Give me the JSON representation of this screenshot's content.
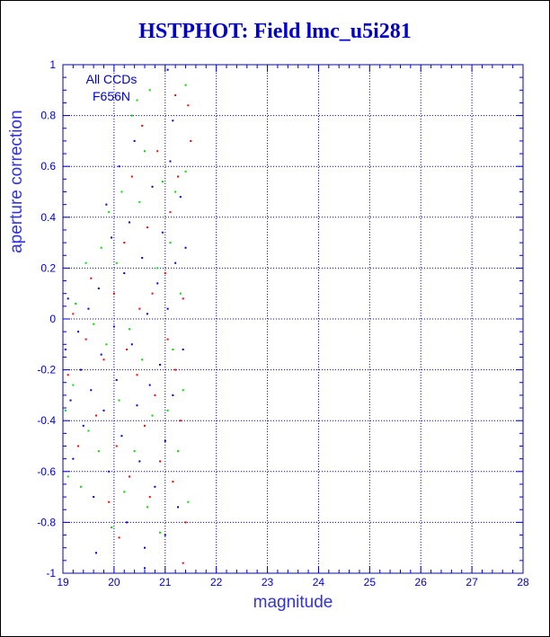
{
  "chart_data": {
    "type": "scatter",
    "title": "HSTPHOT: Field lmc_u5i281",
    "xlabel": "magnitude",
    "ylabel": "aperture correction",
    "xlim": [
      19,
      28
    ],
    "ylim": [
      -1,
      1
    ],
    "x_ticks": [
      "19",
      "20",
      "21",
      "22",
      "23",
      "24",
      "25",
      "26",
      "27",
      "28"
    ],
    "y_ticks": [
      "-1",
      "-0.8",
      "-0.6",
      "-0.4",
      "-0.2",
      "0",
      "0.2",
      "0.4",
      "0.6",
      "0.8",
      "1"
    ],
    "grid": true,
    "annotations": [
      "All CCDs",
      "F656N"
    ],
    "colors": {
      "axis": "#0000cc",
      "grid": "#0000cc",
      "title": "#0000cc"
    },
    "series": [
      {
        "color": "#0000cc",
        "points": [
          [
            19.05,
            -0.12
          ],
          [
            19.1,
            0.08
          ],
          [
            19.15,
            -0.32
          ],
          [
            19.2,
            -0.55
          ],
          [
            19.3,
            -0.05
          ],
          [
            19.35,
            -0.2
          ],
          [
            19.4,
            -0.42
          ],
          [
            19.5,
            0.04
          ],
          [
            19.55,
            -0.28
          ],
          [
            19.6,
            -0.7
          ],
          [
            19.65,
            -0.92
          ],
          [
            19.7,
            0.12
          ],
          [
            19.75,
            -0.14
          ],
          [
            19.8,
            -0.36
          ],
          [
            19.85,
            0.45
          ],
          [
            19.9,
            -0.6
          ],
          [
            19.95,
            0.32
          ],
          [
            20.0,
            -0.03
          ],
          [
            20.05,
            -0.24
          ],
          [
            20.1,
            0.6
          ],
          [
            20.15,
            -0.46
          ],
          [
            20.2,
            0.18
          ],
          [
            20.25,
            -0.8
          ],
          [
            20.3,
            0.38
          ],
          [
            20.35,
            -0.1
          ],
          [
            20.4,
            0.7
          ],
          [
            20.45,
            -0.34
          ],
          [
            20.5,
            -0.56
          ],
          [
            20.55,
            0.24
          ],
          [
            20.6,
            -0.9
          ],
          [
            20.65,
            0.02
          ],
          [
            20.7,
            -0.26
          ],
          [
            20.75,
            0.52
          ],
          [
            20.8,
            -0.66
          ],
          [
            20.85,
            0.14
          ],
          [
            20.9,
            -0.18
          ],
          [
            20.95,
            0.34
          ],
          [
            21.0,
            -0.48
          ],
          [
            21.05,
            0.04
          ],
          [
            21.1,
            0.62
          ],
          [
            21.15,
            -0.3
          ],
          [
            21.2,
            0.22
          ],
          [
            21.25,
            -0.74
          ],
          [
            21.3,
            0.48
          ],
          [
            21.35,
            -0.12
          ],
          [
            21.4,
            0.28
          ],
          [
            21.05,
            0.98
          ],
          [
            21.15,
            0.78
          ],
          [
            20.6,
            -0.98
          ],
          [
            21.0,
            -0.85
          ]
        ]
      },
      {
        "color": "#ff0000",
        "points": [
          [
            19.1,
            -0.22
          ],
          [
            19.2,
            0.02
          ],
          [
            19.3,
            -0.5
          ],
          [
            19.45,
            -0.08
          ],
          [
            19.55,
            0.16
          ],
          [
            19.65,
            -0.38
          ],
          [
            19.8,
            -0.16
          ],
          [
            19.9,
            -0.72
          ],
          [
            20.0,
            0.1
          ],
          [
            20.05,
            -0.5
          ],
          [
            20.1,
            -0.86
          ],
          [
            20.2,
            0.3
          ],
          [
            20.25,
            -0.12
          ],
          [
            20.3,
            -0.62
          ],
          [
            20.35,
            0.56
          ],
          [
            20.45,
            -0.22
          ],
          [
            20.5,
            0.04
          ],
          [
            20.55,
            0.76
          ],
          [
            20.6,
            -0.42
          ],
          [
            20.65,
            0.36
          ],
          [
            20.7,
            -0.7
          ],
          [
            20.75,
            0.1
          ],
          [
            20.8,
            -0.3
          ],
          [
            20.85,
            0.66
          ],
          [
            20.9,
            -0.56
          ],
          [
            21.0,
            0.18
          ],
          [
            21.05,
            -0.08
          ],
          [
            21.1,
            0.42
          ],
          [
            21.15,
            -0.64
          ],
          [
            21.2,
            -0.2
          ],
          [
            21.25,
            0.56
          ],
          [
            21.3,
            -0.4
          ],
          [
            21.35,
            0.08
          ],
          [
            21.4,
            -0.8
          ],
          [
            21.45,
            0.84
          ],
          [
            21.5,
            0.7
          ],
          [
            21.2,
            0.88
          ],
          [
            21.35,
            -0.96
          ]
        ]
      },
      {
        "color": "#00dd00",
        "points": [
          [
            19.05,
            -0.36
          ],
          [
            19.1,
            -0.62
          ],
          [
            19.2,
            -0.26
          ],
          [
            19.25,
            0.06
          ],
          [
            19.35,
            -0.66
          ],
          [
            19.45,
            0.22
          ],
          [
            19.5,
            -0.44
          ],
          [
            19.6,
            -0.02
          ],
          [
            19.7,
            -0.52
          ],
          [
            19.75,
            0.28
          ],
          [
            19.85,
            -0.1
          ],
          [
            19.9,
            0.42
          ],
          [
            19.95,
            -0.82
          ],
          [
            20.05,
            0.22
          ],
          [
            20.1,
            -0.32
          ],
          [
            20.15,
            0.5
          ],
          [
            20.2,
            -0.68
          ],
          [
            20.3,
            -0.04
          ],
          [
            20.35,
            0.8
          ],
          [
            20.4,
            -0.52
          ],
          [
            20.5,
            0.46
          ],
          [
            20.55,
            -0.16
          ],
          [
            20.6,
            0.66
          ],
          [
            20.65,
            -0.74
          ],
          [
            20.7,
            0.9
          ],
          [
            20.75,
            -0.38
          ],
          [
            20.85,
            0.2
          ],
          [
            20.9,
            -0.84
          ],
          [
            20.95,
            0.54
          ],
          [
            21.05,
            -0.36
          ],
          [
            21.1,
            0.3
          ],
          [
            21.15,
            -0.12
          ],
          [
            21.2,
            0.5
          ],
          [
            21.25,
            -0.52
          ],
          [
            21.3,
            0.1
          ],
          [
            21.35,
            -0.28
          ],
          [
            21.4,
            0.92
          ],
          [
            21.45,
            -0.72
          ],
          [
            21.4,
            0.58
          ],
          [
            20.45,
            0.86
          ]
        ]
      }
    ]
  }
}
